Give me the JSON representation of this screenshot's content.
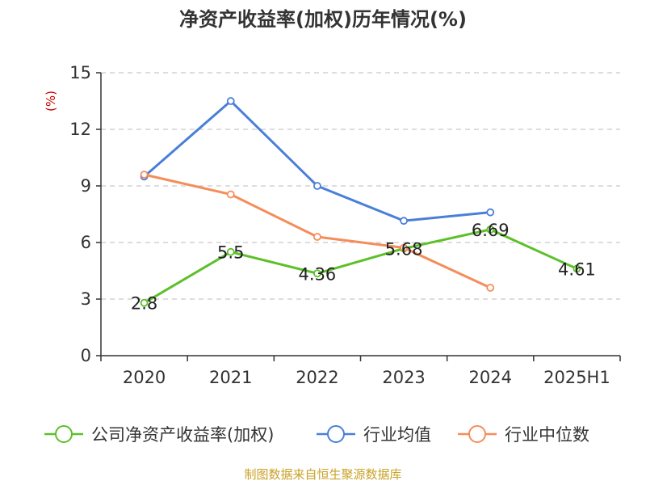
{
  "chart_data": {
    "type": "line",
    "title": "净资产收益率(加权)历年情况(%)",
    "unit_label": "(%)",
    "categories": [
      "2020",
      "2021",
      "2022",
      "2023",
      "2024",
      "2025H1"
    ],
    "ylim": [
      0,
      15
    ],
    "yticks": [
      0,
      3,
      6,
      9,
      12,
      15
    ],
    "ytick_labels": [
      "0",
      "3",
      "6",
      "9",
      "12",
      "15"
    ],
    "grid": true,
    "legend_position": "bottom",
    "series": [
      {
        "name": "公司净资产收益率(加权)",
        "color": "#5cc02a",
        "values": [
          2.8,
          5.5,
          4.36,
          5.68,
          6.69,
          4.61
        ],
        "labels": [
          "2.8",
          "5.5",
          "4.36",
          "5.68",
          "6.69",
          "4.61"
        ]
      },
      {
        "name": "行业均值",
        "color": "#4a7fd8",
        "values": [
          9.5,
          13.5,
          9.0,
          7.15,
          7.6,
          null
        ],
        "labels": null
      },
      {
        "name": "行业中位数",
        "color": "#f58d5a",
        "values": [
          9.6,
          8.55,
          6.3,
          5.72,
          3.6,
          null
        ],
        "labels": null
      }
    ],
    "source": "制图数据来自恒生聚源数据库"
  }
}
